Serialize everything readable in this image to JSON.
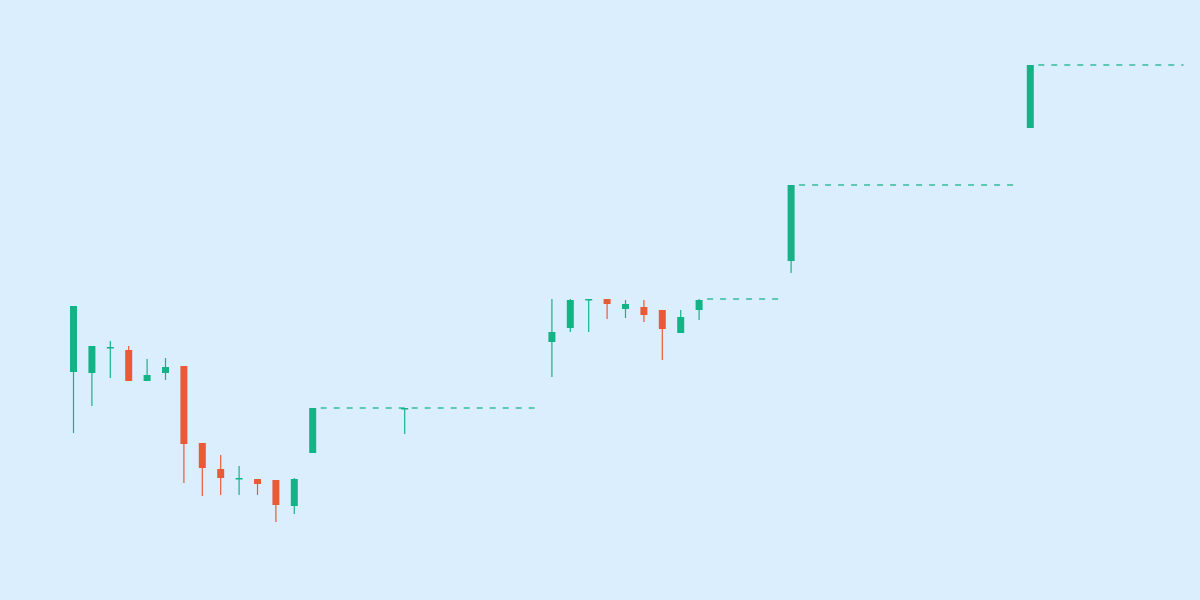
{
  "colors": {
    "background": "#dbeefe",
    "up": "#13b386",
    "down": "#ea5a36",
    "level_line": "#13b386"
  },
  "chart_data": {
    "type": "candlestick",
    "title": "",
    "xlabel": "",
    "ylabel": "",
    "grid": false,
    "x_axis_shown": false,
    "y_axis_shown": false,
    "ylim": [
      0,
      600
    ],
    "candles": [
      {
        "x": 1,
        "open": 228,
        "high": 293,
        "low": 167,
        "close": 294
      },
      {
        "x": 2,
        "open": 227,
        "high": 254,
        "low": 194,
        "close": 254
      },
      {
        "x": 3,
        "open": 252,
        "high": 259,
        "low": 222,
        "close": 253
      },
      {
        "x": 4,
        "open": 250,
        "high": 254,
        "low": 219,
        "close": 219
      },
      {
        "x": 5,
        "open": 219,
        "high": 241,
        "low": 219,
        "close": 225
      },
      {
        "x": 6,
        "open": 227,
        "high": 242,
        "low": 220,
        "close": 233
      },
      {
        "x": 7,
        "open": 234,
        "high": 234,
        "low": 117,
        "close": 156
      },
      {
        "x": 8,
        "open": 157,
        "high": 157,
        "low": 104,
        "close": 132
      },
      {
        "x": 9,
        "open": 131,
        "high": 145,
        "low": 105,
        "close": 122
      },
      {
        "x": 10,
        "open": 122,
        "high": 134,
        "low": 105,
        "close": 122
      },
      {
        "x": 11,
        "open": 121,
        "high": 121,
        "low": 105,
        "close": 116
      },
      {
        "x": 12,
        "open": 120,
        "high": 120,
        "low": 78,
        "close": 95
      },
      {
        "x": 13,
        "open": 94,
        "high": 122,
        "low": 86,
        "close": 121
      },
      {
        "x": 14,
        "open": 147,
        "high": 192,
        "low": 147,
        "close": 192
      },
      {
        "x": 19,
        "open": 192,
        "high": 192,
        "low": 166,
        "close": 192
      },
      {
        "x": 27,
        "open": 258,
        "high": 301,
        "low": 223,
        "close": 268
      },
      {
        "x": 28,
        "open": 272,
        "high": 301,
        "low": 268,
        "close": 300
      },
      {
        "x": 29,
        "open": 301,
        "high": 301,
        "low": 268,
        "close": 301
      },
      {
        "x": 30,
        "open": 301,
        "high": 301,
        "low": 281,
        "close": 296
      },
      {
        "x": 31,
        "open": 291,
        "high": 300,
        "low": 282,
        "close": 296
      },
      {
        "x": 32,
        "open": 293,
        "high": 300,
        "low": 278,
        "close": 285
      },
      {
        "x": 33,
        "open": 290,
        "high": 290,
        "low": 240,
        "close": 271
      },
      {
        "x": 34,
        "open": 267,
        "high": 290,
        "low": 267,
        "close": 283
      },
      {
        "x": 35,
        "open": 290,
        "high": 301,
        "low": 280,
        "close": 300
      },
      {
        "x": 40,
        "open": 339,
        "high": 415,
        "low": 327,
        "close": 415
      },
      {
        "x": 53,
        "open": 472,
        "high": 535,
        "low": 472,
        "close": 535
      }
    ],
    "level_lines": [
      {
        "value": 192,
        "from_x": 14,
        "to_x": 26
      },
      {
        "value": 301,
        "from_x": 35,
        "to_x": 39
      },
      {
        "value": 415,
        "from_x": 40,
        "to_x": 52
      },
      {
        "value": 535,
        "from_x": 53,
        "to_x": 61
      }
    ]
  }
}
